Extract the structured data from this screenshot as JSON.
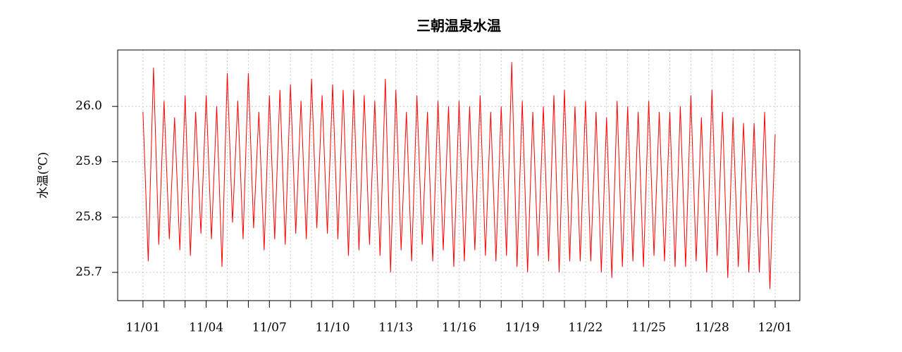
{
  "chart_data": {
    "type": "line",
    "title": "三朝温泉水温",
    "y_label": "水温(℃)",
    "x": [
      0,
      0.25,
      0.5,
      0.75,
      1,
      1.25,
      1.5,
      1.75,
      2,
      2.25,
      2.5,
      2.75,
      3,
      3.25,
      3.5,
      3.75,
      4,
      4.25,
      4.5,
      4.75,
      5,
      5.25,
      5.5,
      5.75,
      6,
      6.25,
      6.5,
      6.75,
      7,
      7.25,
      7.5,
      7.75,
      8,
      8.25,
      8.5,
      8.75,
      9,
      9.25,
      9.5,
      9.75,
      10,
      10.25,
      10.5,
      10.75,
      11,
      11.25,
      11.5,
      11.75,
      12,
      12.25,
      12.5,
      12.75,
      13,
      13.25,
      13.5,
      13.75,
      14,
      14.25,
      14.5,
      14.75,
      15,
      15.25,
      15.5,
      15.75,
      16,
      16.25,
      16.5,
      16.75,
      17,
      17.25,
      17.5,
      17.75,
      18,
      18.25,
      18.5,
      18.75,
      19,
      19.25,
      19.5,
      19.75,
      20,
      20.25,
      20.5,
      20.75,
      21,
      21.25,
      21.5,
      21.75,
      22,
      22.25,
      22.5,
      22.75,
      23,
      23.25,
      23.5,
      23.75,
      24,
      24.25,
      24.5,
      24.75,
      25,
      25.25,
      25.5,
      25.75,
      26,
      26.25,
      26.5,
      26.75,
      27,
      27.25,
      27.5,
      27.75,
      28,
      28.25,
      28.5,
      28.75,
      29,
      29.25,
      29.5,
      29.75,
      30
    ],
    "series": [
      {
        "color": "#ff0000",
        "values": [
          25.99,
          25.72,
          26.07,
          25.75,
          26.01,
          25.76,
          25.98,
          25.74,
          26.02,
          25.73,
          25.99,
          25.77,
          26.02,
          25.76,
          26.0,
          25.71,
          26.06,
          25.79,
          26.01,
          25.76,
          26.06,
          25.78,
          25.99,
          25.74,
          26.02,
          25.76,
          26.03,
          25.75,
          26.04,
          25.77,
          26.01,
          25.76,
          26.05,
          25.78,
          26.02,
          25.77,
          26.04,
          25.76,
          26.03,
          25.73,
          26.03,
          25.74,
          26.02,
          25.75,
          26.01,
          25.73,
          26.05,
          25.7,
          26.03,
          25.74,
          25.99,
          25.72,
          26.02,
          25.75,
          25.99,
          25.72,
          26.01,
          25.74,
          26.0,
          25.71,
          26.01,
          25.72,
          26.0,
          25.74,
          26.02,
          25.73,
          25.99,
          25.72,
          26.0,
          25.73,
          26.08,
          25.71,
          26.01,
          25.7,
          25.99,
          25.73,
          26.0,
          25.72,
          26.02,
          25.7,
          26.03,
          25.72,
          26.0,
          25.72,
          26.01,
          25.72,
          25.99,
          25.7,
          25.98,
          25.69,
          26.01,
          25.71,
          26.0,
          25.72,
          25.99,
          25.71,
          26.01,
          25.73,
          25.99,
          25.72,
          25.99,
          25.71,
          26.0,
          25.71,
          26.02,
          25.72,
          25.98,
          25.7,
          26.03,
          25.73,
          25.99,
          25.69,
          25.98,
          25.71,
          25.97,
          25.7,
          25.97,
          25.7,
          25.99,
          25.67,
          25.95
        ]
      }
    ],
    "xlim": [
      -1.2,
      31.17
    ],
    "ylim": [
      25.649,
      26.102
    ],
    "xticks": [
      {
        "value": 0,
        "label": "11/01"
      },
      {
        "value": 3,
        "label": "11/04"
      },
      {
        "value": 6,
        "label": "11/07"
      },
      {
        "value": 9,
        "label": "11/10"
      },
      {
        "value": 12,
        "label": "11/13"
      },
      {
        "value": 15,
        "label": "11/16"
      },
      {
        "value": 18,
        "label": "11/19"
      },
      {
        "value": 21,
        "label": "11/22"
      },
      {
        "value": 24,
        "label": "11/25"
      },
      {
        "value": 27,
        "label": "11/28"
      },
      {
        "value": 30,
        "label": "12/01"
      }
    ],
    "xminorticks": [
      1,
      2,
      4,
      5,
      7,
      8,
      10,
      11,
      13,
      14,
      16,
      17,
      19,
      20,
      22,
      23,
      25,
      26,
      28,
      29
    ],
    "yticks": [
      25.7,
      25.8,
      25.9,
      {
        "value": 26,
        "label": "26.0"
      }
    ],
    "grid": true
  }
}
